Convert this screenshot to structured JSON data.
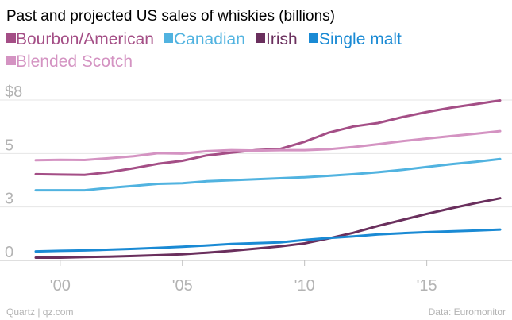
{
  "chart_data": {
    "type": "line",
    "title": "Past and projected US sales of whiskies (billions)",
    "xlabel": "",
    "ylabel": "",
    "x": [
      1999,
      2000,
      2001,
      2002,
      2003,
      2004,
      2005,
      2006,
      2007,
      2008,
      2009,
      2010,
      2011,
      2012,
      2013,
      2014,
      2015,
      2016,
      2017,
      2018
    ],
    "xlim": [
      1999,
      2018
    ],
    "ylim": [
      0,
      8
    ],
    "y_ticks": [
      0,
      2.67,
      5.33,
      8
    ],
    "y_tick_labels": [
      "0",
      "3",
      "5",
      "$8"
    ],
    "x_ticks": [
      2000,
      2005,
      2010,
      2015
    ],
    "x_tick_labels": [
      "'00",
      "'05",
      "'10",
      "'15"
    ],
    "grid": true,
    "legend_position": "top",
    "series": [
      {
        "name": "Bourbon/American",
        "color": "#a44e86",
        "values": [
          4.3,
          4.28,
          4.27,
          4.4,
          4.6,
          4.82,
          4.97,
          5.24,
          5.38,
          5.5,
          5.56,
          5.92,
          6.38,
          6.68,
          6.85,
          7.15,
          7.4,
          7.62,
          7.8,
          7.98
        ]
      },
      {
        "name": "Canadian",
        "color": "#51b3e0",
        "values": [
          3.5,
          3.5,
          3.5,
          3.62,
          3.72,
          3.82,
          3.85,
          3.95,
          4.0,
          4.05,
          4.1,
          4.15,
          4.22,
          4.3,
          4.4,
          4.52,
          4.66,
          4.8,
          4.92,
          5.06
        ]
      },
      {
        "name": "Irish",
        "color": "#6a2f5d",
        "values": [
          0.14,
          0.14,
          0.17,
          0.19,
          0.22,
          0.26,
          0.31,
          0.39,
          0.48,
          0.59,
          0.7,
          0.85,
          1.1,
          1.38,
          1.72,
          2.02,
          2.32,
          2.6,
          2.86,
          3.1
        ]
      },
      {
        "name": "Single malt",
        "color": "#1a8ad4",
        "values": [
          0.45,
          0.48,
          0.5,
          0.54,
          0.58,
          0.63,
          0.68,
          0.75,
          0.82,
          0.86,
          0.9,
          1.02,
          1.12,
          1.2,
          1.3,
          1.36,
          1.41,
          1.45,
          1.49,
          1.54
        ]
      },
      {
        "name": "Blended Scotch",
        "color": "#d493c2",
        "values": [
          5.0,
          5.02,
          5.01,
          5.1,
          5.2,
          5.35,
          5.33,
          5.45,
          5.5,
          5.48,
          5.5,
          5.5,
          5.55,
          5.66,
          5.8,
          5.95,
          6.08,
          6.2,
          6.32,
          6.45
        ]
      }
    ]
  },
  "footer": {
    "source_left": "Quartz | qz.com",
    "source_right": "Data: Euromonitor"
  }
}
